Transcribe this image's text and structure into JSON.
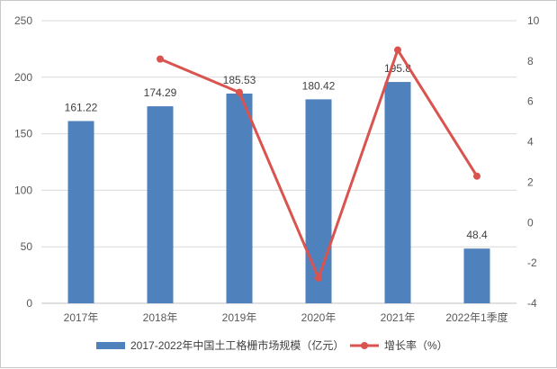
{
  "chart_data": {
    "type": "bar",
    "categories": [
      "2017年",
      "2018年",
      "2019年",
      "2020年",
      "2021年",
      "2022年1季度"
    ],
    "series": [
      {
        "name": "2017-2022年中国土工格栅市场规模（亿元）",
        "type": "bar",
        "axis": "left",
        "color": "#4f81bd",
        "values": [
          161.22,
          174.29,
          185.53,
          180.42,
          195.8,
          48.4
        ],
        "labels": [
          "161.22",
          "174.29",
          "185.53",
          "180.42",
          "195.8",
          "48.4"
        ]
      },
      {
        "name": "增长率（%）",
        "type": "line",
        "axis": "right",
        "color": "#d9534f",
        "values": [
          null,
          8.1,
          6.45,
          -2.75,
          8.55,
          2.3
        ]
      }
    ],
    "y_left": {
      "ylim": [
        0,
        250
      ],
      "ticks": [
        "0",
        "50",
        "100",
        "150",
        "200",
        "250"
      ]
    },
    "y_right": {
      "ylim": [
        -4,
        10
      ],
      "ticks": [
        "-4",
        "-2",
        "0",
        "2",
        "4",
        "6",
        "8",
        "10"
      ]
    },
    "grid": true,
    "legend": "bottom"
  }
}
